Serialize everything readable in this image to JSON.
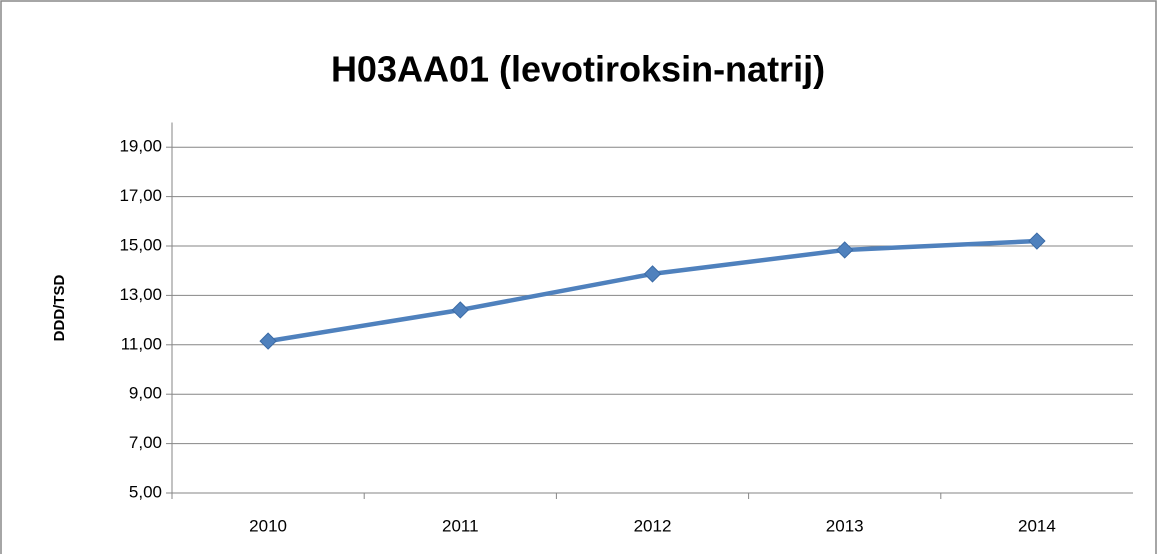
{
  "chart_data": {
    "type": "line",
    "title": "H03AA01 (levotiroksin-natrij)",
    "y_label": "DDD/TSD",
    "categories": [
      "2010",
      "2011",
      "2012",
      "2013",
      "2014"
    ],
    "series": [
      {
        "name": "H03AA01",
        "color": "#4f81bd",
        "values": [
          11.15,
          12.41,
          13.87,
          14.84,
          15.2
        ]
      }
    ],
    "ylim": [
      5,
      20
    ],
    "yticks": [
      {
        "value": 5,
        "label": "5,00"
      },
      {
        "value": 7,
        "label": "7,00"
      },
      {
        "value": 9,
        "label": "9,00"
      },
      {
        "value": 11,
        "label": "11,00"
      },
      {
        "value": 13,
        "label": "13,00"
      },
      {
        "value": 15,
        "label": "15,00"
      },
      {
        "value": 17,
        "label": "17,00"
      },
      {
        "value": 19,
        "label": "19,00"
      }
    ],
    "grid": true
  }
}
